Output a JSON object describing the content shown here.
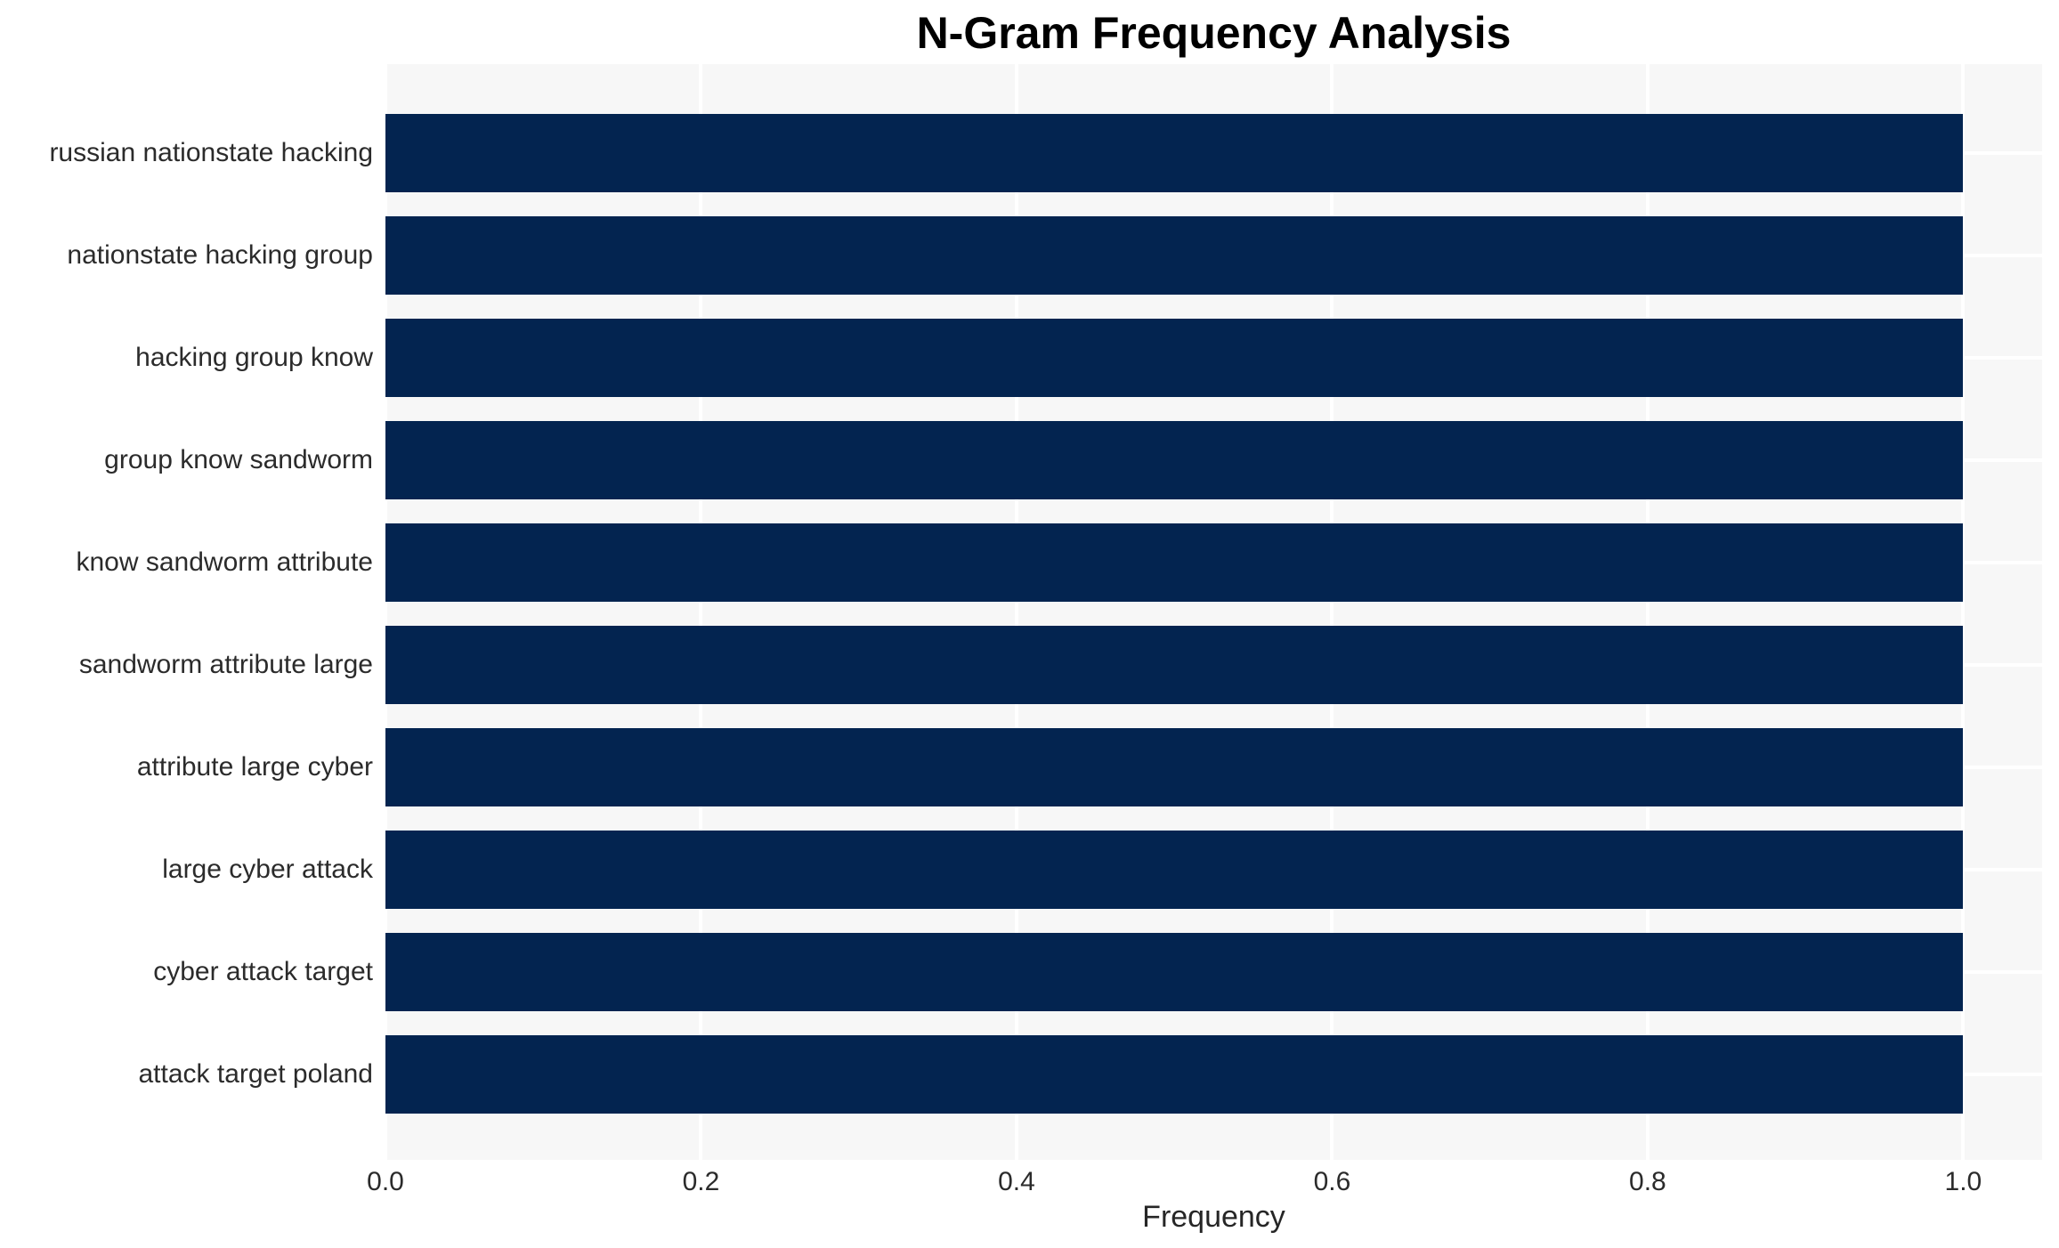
{
  "chart_data": {
    "type": "bar",
    "orientation": "horizontal",
    "title": "N-Gram Frequency Analysis",
    "xlabel": "Frequency",
    "ylabel": "",
    "categories": [
      "russian nationstate hacking",
      "nationstate hacking group",
      "hacking group know",
      "group know sandworm",
      "know sandworm attribute",
      "sandworm attribute large",
      "attribute large cyber",
      "large cyber attack",
      "cyber attack target",
      "attack target poland"
    ],
    "values": [
      1.0,
      1.0,
      1.0,
      1.0,
      1.0,
      1.0,
      1.0,
      1.0,
      1.0,
      1.0
    ],
    "xlim": [
      0,
      1.05
    ],
    "xticks": [
      {
        "value": 0.0,
        "label": "0.0"
      },
      {
        "value": 0.2,
        "label": "0.2"
      },
      {
        "value": 0.4,
        "label": "0.4"
      },
      {
        "value": 0.6,
        "label": "0.6"
      },
      {
        "value": 0.8,
        "label": "0.8"
      },
      {
        "value": 1.0,
        "label": "1.0"
      }
    ],
    "grid": true,
    "legend": false,
    "colors": {
      "bar": "#032450",
      "plot_bg": "#f7f7f7",
      "gridline": "#ffffff",
      "title_text": "#000000",
      "tick_text": "#2b2b2b",
      "page_bg": "#ffffff"
    }
  }
}
